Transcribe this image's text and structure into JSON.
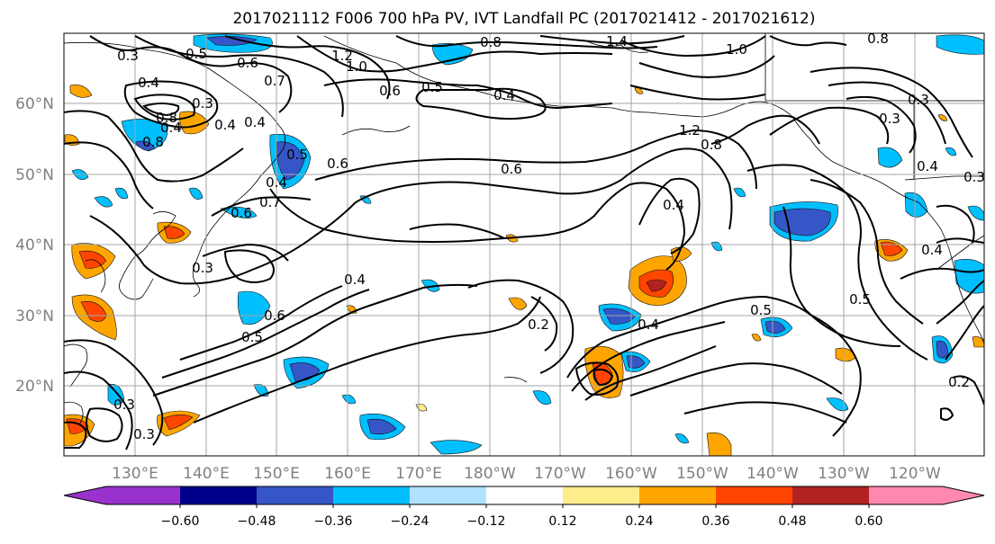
{
  "title": "2017021112 F006 700 hPa PV, IVT Landfall PC (2017021412 - 2017021612)",
  "lat_labels": [
    "60°N",
    "50°N",
    "40°N",
    "30°N",
    "20°N"
  ],
  "lon_labels": [
    "130°E",
    "140°E",
    "150°E",
    "160°E",
    "170°E",
    "180°W",
    "170°W",
    "160°W",
    "150°W",
    "140°W",
    "130°W",
    "120°W"
  ],
  "colorbar": {
    "colors": [
      "#9932CC",
      "#00008B",
      "#3656C8",
      "#00BFFF",
      "#B0E2FF",
      "#FFFFFF",
      "#FFEC8B",
      "#FFA500",
      "#FF4500",
      "#B22222",
      "#FF88B0"
    ],
    "ticks": [
      "−0.60",
      "−0.48",
      "−0.36",
      "−0.24",
      "−0.12",
      "0.12",
      "0.24",
      "0.36",
      "0.48",
      "0.60"
    ]
  },
  "contour_labels": [
    "0.3",
    "0.5",
    "0.6",
    "0.4",
    "1.2",
    "1.0",
    "0.8",
    "1.4",
    "0.7",
    "0.8",
    "0.6",
    "0.5",
    "0.4",
    "0.4",
    "0.8",
    "0.4",
    "0.3",
    "0.4",
    "0.6",
    "0.5",
    "0.7",
    "0.6",
    "0.4",
    "0.6",
    "0.5",
    "0.4",
    "0.6",
    "0.4",
    "0.2",
    "0.4",
    "0.5",
    "0.5",
    "0.3",
    "0.3",
    "0.3",
    "0.2",
    "0.4",
    "1.2",
    "0.8",
    "0.3",
    "0.4",
    "0.3",
    "1.0",
    "0.8",
    "0.3"
  ]
}
